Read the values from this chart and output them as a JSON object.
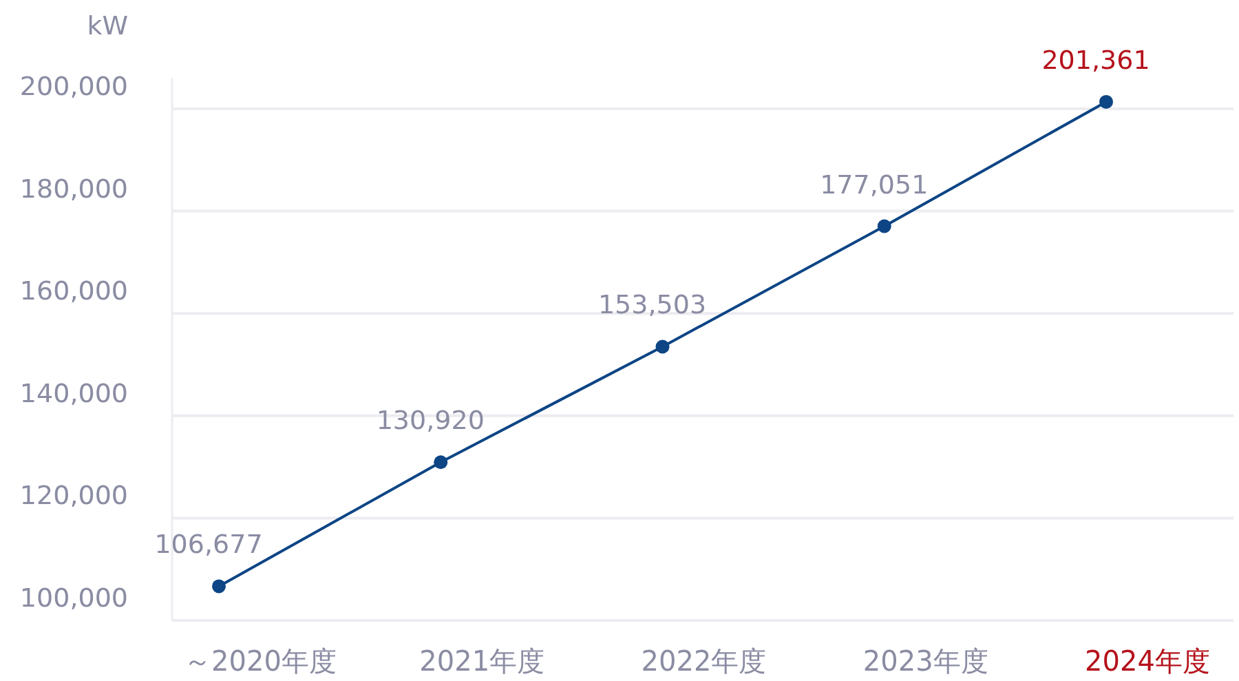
{
  "chart_data": {
    "type": "line",
    "ylabel": "kW",
    "categories": [
      "～2020年度",
      "2021年度",
      "2022年度",
      "2023年度",
      "2024年度"
    ],
    "series": [
      {
        "color": "#0d4585",
        "values": [
          106677,
          130920,
          153503,
          177051,
          201361
        ],
        "value_labels": [
          "106,677",
          "130,920",
          "153,503",
          "177,051",
          "201,361"
        ]
      }
    ],
    "yticks": [
      {
        "value": 100000,
        "label": "100,000"
      },
      {
        "value": 120000,
        "label": "120,000"
      },
      {
        "value": 140000,
        "label": "140,000"
      },
      {
        "value": 160000,
        "label": "160,000"
      },
      {
        "value": 180000,
        "label": "180,000"
      },
      {
        "value": 200000,
        "label": "200,000"
      }
    ],
    "ylim": [
      100000,
      206000
    ],
    "grid": "y",
    "marker": "circle",
    "line_style": "solid"
  }
}
